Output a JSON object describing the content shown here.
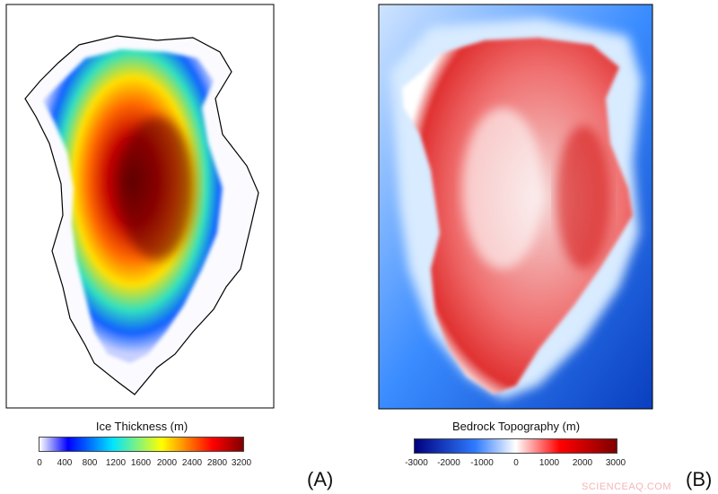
{
  "panel_a": {
    "label": "(A)",
    "colorbar": {
      "title": "Ice Thickness (m)",
      "ticks": [
        "0",
        "400",
        "800",
        "1200",
        "1600",
        "2000",
        "2400",
        "2800",
        "3200"
      ],
      "colors": [
        "#ffffff",
        "#0000ff",
        "#00e5ff",
        "#ffff00",
        "#ff0000",
        "#800000"
      ]
    }
  },
  "panel_b": {
    "label": "(B)",
    "colorbar": {
      "title": "Bedrock Topography (m)",
      "ticks": [
        "-3000",
        "-2000",
        "-1000",
        "0",
        "1000",
        "2000",
        "3000"
      ],
      "colors": [
        "#00007f",
        "#2e7bff",
        "#ffffff",
        "#ff0000",
        "#7f0000"
      ]
    }
  },
  "watermark": "SCIENCEAQ.COM"
}
